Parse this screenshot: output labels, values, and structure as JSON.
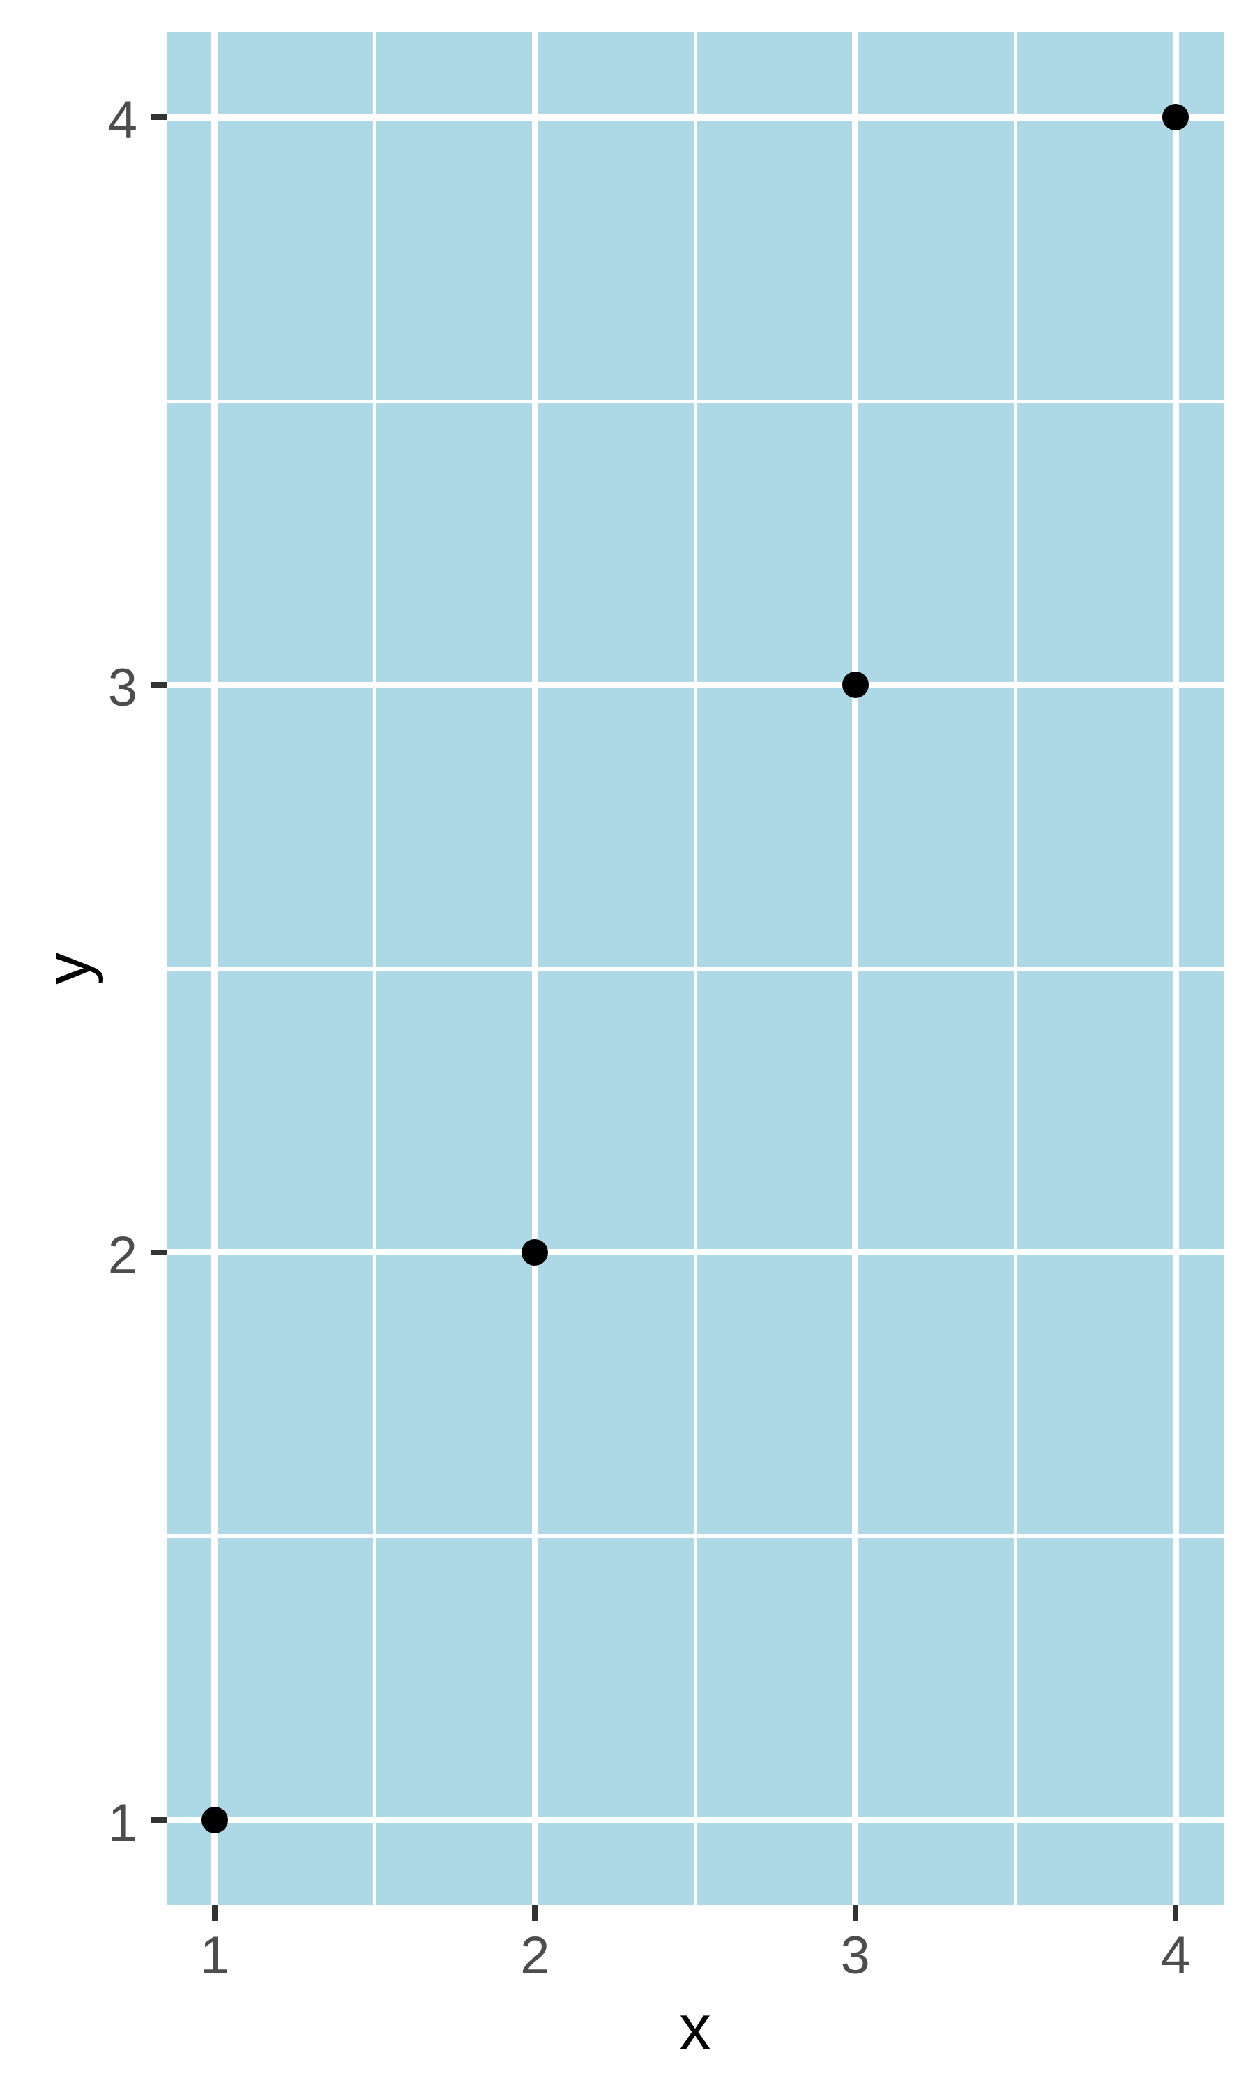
{
  "chart_data": {
    "type": "scatter",
    "title": "",
    "xlabel": "x",
    "ylabel": "y",
    "points": [
      {
        "x": 1,
        "y": 1
      },
      {
        "x": 2,
        "y": 2
      },
      {
        "x": 3,
        "y": 3
      },
      {
        "x": 4,
        "y": 4
      }
    ],
    "x_ticks": [
      1,
      2,
      3,
      4
    ],
    "y_ticks": [
      1,
      2,
      3,
      4
    ],
    "x_minor_gridlines": [
      1.5,
      2.5,
      3.5
    ],
    "y_minor_gridlines": [
      1.5,
      2.5,
      3.5
    ],
    "xlim": [
      0.85,
      4.15
    ],
    "ylim": [
      0.85,
      4.15
    ],
    "grid": "on",
    "legend": "none",
    "colors": {
      "page_bg": "#FFFFFF",
      "panel_bg": "#ADD8E6",
      "gridline": "#FFFFFF",
      "point": "#000000",
      "tick_mark": "#333333",
      "tick_label": "#4D4D4D",
      "axis_title": "#000000"
    }
  }
}
